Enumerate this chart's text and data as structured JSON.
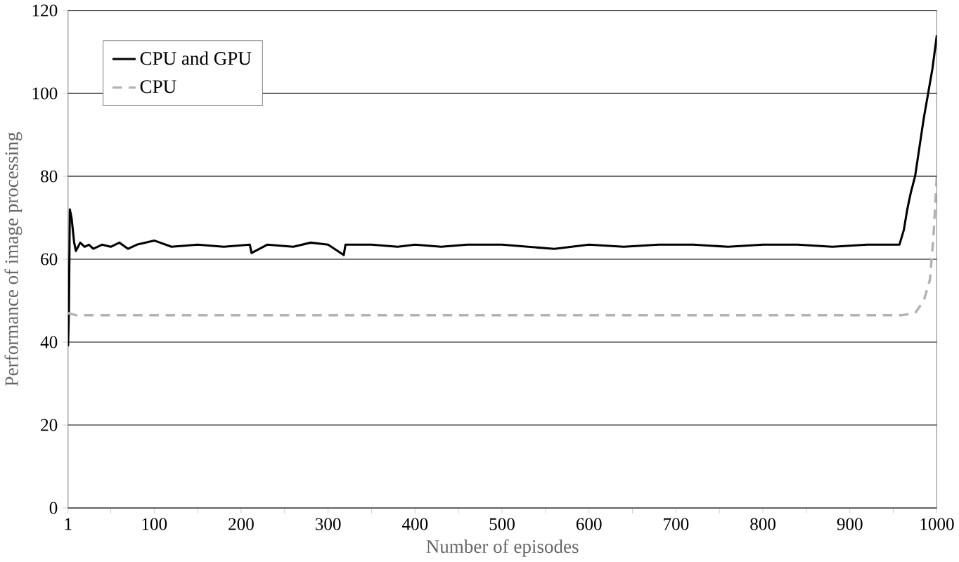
{
  "chart_data": {
    "type": "line",
    "xlabel": "Number of episodes",
    "ylabel": "Performance of image processing",
    "xlim": [
      1,
      1000
    ],
    "ylim": [
      0,
      120
    ],
    "xticks": [
      1,
      {
        "value": 50,
        "label": null
      },
      100,
      {
        "value": 150,
        "label": null
      },
      200,
      {
        "value": 250,
        "label": null
      },
      300,
      {
        "value": 350,
        "label": null
      },
      400,
      {
        "value": 450,
        "label": null
      },
      500,
      {
        "value": 550,
        "label": null
      },
      600,
      {
        "value": 650,
        "label": null
      },
      700,
      {
        "value": 750,
        "label": null
      },
      800,
      {
        "value": 850,
        "label": null
      },
      900,
      {
        "value": 950,
        "label": null
      },
      1000
    ],
    "yticks": [
      0,
      20,
      40,
      60,
      80,
      100,
      120
    ],
    "grid": "y",
    "legend": "top left",
    "marker": "none",
    "series": [
      {
        "name": "CPU and GPU",
        "color": "#000000",
        "line_style": "solid",
        "x": [
          1,
          2,
          3,
          5,
          8,
          10,
          15,
          20,
          25,
          30,
          40,
          50,
          60,
          70,
          80,
          100,
          120,
          150,
          180,
          210,
          212,
          230,
          260,
          280,
          300,
          318,
          320,
          350,
          380,
          400,
          430,
          460,
          500,
          530,
          560,
          600,
          640,
          680,
          720,
          760,
          800,
          840,
          880,
          920,
          950,
          957,
          962,
          966,
          970,
          975,
          980,
          985,
          990,
          995,
          1000
        ],
        "values": [
          39,
          48,
          72,
          70,
          64,
          62,
          64,
          63,
          63.5,
          62.5,
          63.5,
          63,
          64,
          62.5,
          63.5,
          64.5,
          63,
          63.5,
          63,
          63.5,
          61.5,
          63.5,
          63,
          64,
          63.5,
          61,
          63.5,
          63.5,
          63,
          63.5,
          63,
          63.5,
          63.5,
          63,
          62.5,
          63.5,
          63,
          63.5,
          63.5,
          63,
          63.5,
          63.5,
          63,
          63.5,
          63.5,
          63.5,
          67,
          72,
          76,
          80,
          87,
          94,
          100,
          106,
          114
        ]
      },
      {
        "name": "CPU",
        "color": "#b3b3b3",
        "line_style": "dashed",
        "x": [
          1,
          10,
          50,
          100,
          200,
          300,
          400,
          500,
          600,
          700,
          800,
          900,
          960,
          975,
          985,
          992,
          996,
          1000
        ],
        "values": [
          47,
          46.5,
          46.5,
          46.5,
          46.5,
          46.5,
          46.5,
          46.5,
          46.5,
          46.5,
          46.5,
          46.5,
          46.5,
          47,
          50,
          55,
          65,
          80
        ]
      }
    ]
  }
}
